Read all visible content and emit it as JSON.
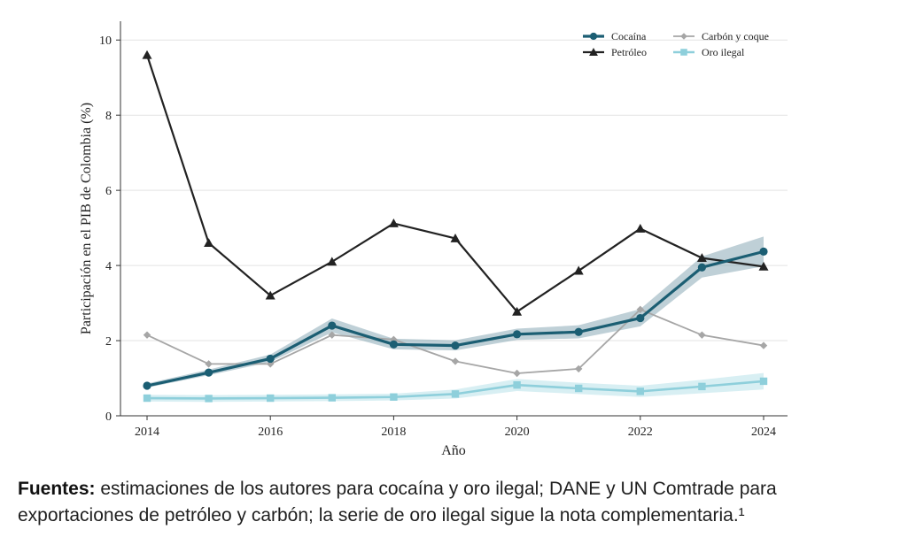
{
  "caption": {
    "label": "Fuentes:",
    "text": "estimaciones de los autores para cocaína y oro ilegal; DANE y UN Comtrade para exportaciones de petróleo y carbón; la serie de oro ilegal sigue la nota complementaria.¹"
  },
  "chart_data": {
    "type": "line",
    "title": "",
    "xlabel": "Año",
    "ylabel": "Participación en el PIB de Colombia (%)",
    "x": [
      2014,
      2015,
      2016,
      2017,
      2018,
      2019,
      2020,
      2021,
      2022,
      2023,
      2024
    ],
    "xticks": [
      2014,
      2016,
      2018,
      2020,
      2022,
      2024
    ],
    "yticks": [
      0,
      2,
      4,
      6,
      8,
      10
    ],
    "xlim": [
      2014,
      2024
    ],
    "ylim": [
      0,
      10.5
    ],
    "grid": "horizontal",
    "legend_position": "top-right",
    "series": [
      {
        "name": "Cocaína",
        "color": "#1b5e73",
        "marker": "circle",
        "values": [
          0.8,
          1.15,
          1.52,
          2.4,
          1.9,
          1.87,
          2.17,
          2.23,
          2.6,
          3.95,
          4.37
        ],
        "band_low": [
          0.75,
          1.08,
          1.43,
          2.22,
          1.77,
          1.74,
          2.02,
          2.06,
          2.38,
          3.68,
          3.98
        ],
        "band_high": [
          0.86,
          1.23,
          1.63,
          2.59,
          2.05,
          2.01,
          2.32,
          2.41,
          2.84,
          4.24,
          4.77
        ],
        "band_color": "#8aa9b6"
      },
      {
        "name": "Petróleo",
        "color": "#222222",
        "marker": "triangle",
        "values": [
          9.6,
          4.6,
          3.2,
          4.1,
          5.12,
          4.72,
          2.77,
          3.86,
          4.98,
          4.2,
          3.97
        ]
      },
      {
        "name": "Carbón y coque",
        "color": "#a6a6a6",
        "marker": "diamond",
        "values": [
          2.15,
          1.38,
          1.38,
          2.15,
          2.03,
          1.45,
          1.13,
          1.25,
          2.83,
          2.15,
          1.87
        ]
      },
      {
        "name": "Oro ilegal",
        "color": "#8ecfdb",
        "marker": "square",
        "values": [
          0.47,
          0.46,
          0.47,
          0.48,
          0.5,
          0.58,
          0.82,
          0.73,
          0.65,
          0.78,
          0.92
        ],
        "band_low": [
          0.38,
          0.37,
          0.38,
          0.39,
          0.41,
          0.46,
          0.66,
          0.58,
          0.5,
          0.6,
          0.7
        ],
        "band_high": [
          0.56,
          0.55,
          0.56,
          0.57,
          0.59,
          0.7,
          0.98,
          0.88,
          0.8,
          0.96,
          1.14
        ],
        "band_color": "#b8e2ea"
      }
    ]
  }
}
